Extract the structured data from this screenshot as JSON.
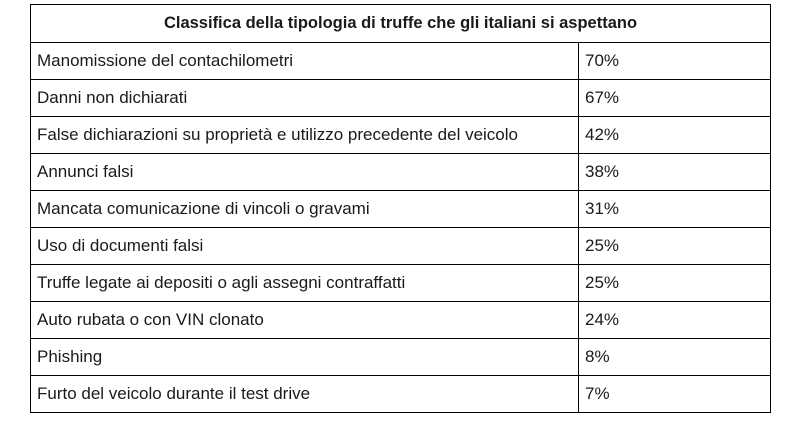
{
  "table": {
    "title": "Classifica della tipologia di truffe che gli italiani si aspettano",
    "rows": [
      {
        "label": "Manomissione del contachilometri",
        "value": "70%"
      },
      {
        "label": "Danni non dichiarati",
        "value": "67%"
      },
      {
        "label": "False dichiarazioni su proprietà e utilizzo precedente del veicolo",
        "value": "42%"
      },
      {
        "label": "Annunci falsi",
        "value": "38%"
      },
      {
        "label": "Mancata comunicazione di vincoli o gravami",
        "value": "31%"
      },
      {
        "label": "Uso di documenti falsi",
        "value": "25%"
      },
      {
        "label": "Truffe legate ai depositi o agli assegni contraffatti",
        "value": "25%"
      },
      {
        "label": "Auto rubata o con VIN clonato",
        "value": "24%"
      },
      {
        "label": "Phishing",
        "value": "8%"
      },
      {
        "label": "Furto del veicolo durante il test drive",
        "value": "7%"
      }
    ]
  }
}
